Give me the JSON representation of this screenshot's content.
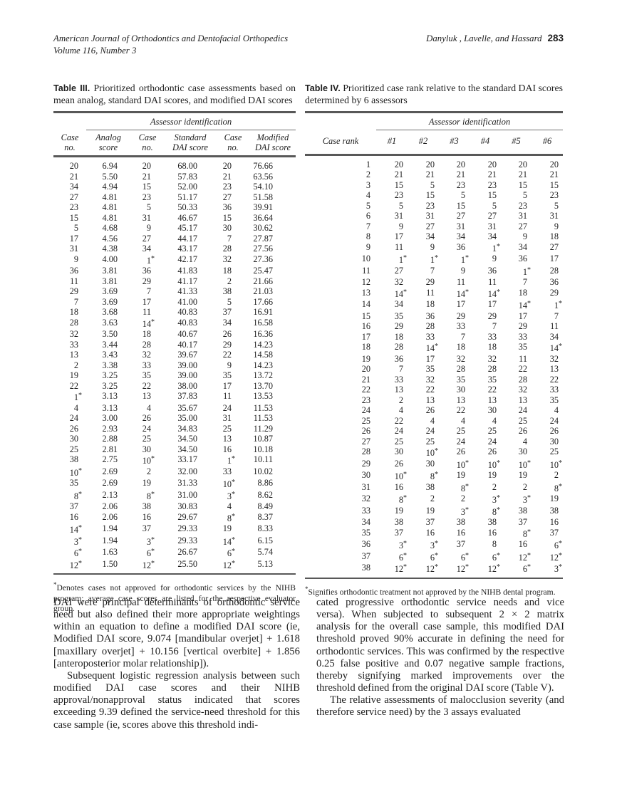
{
  "page_header": {
    "journal_line1": "American Journal of Orthodontics and Dentofacial Orthopedics",
    "journal_line2": "Volume 116, Number 3",
    "authors": "Danyluk , Lavelle, and Hassard",
    "page_number": "283"
  },
  "table3": {
    "caption_label": "Table III.",
    "caption_text": "Prioritized orthodontic case assessments based on mean analog, standard DAI scores, and modified DAI scores",
    "span_header": "Assessor identification",
    "columns": [
      "Case\nno.",
      "Analog\nscore",
      "Case\nno.",
      "Standard\nDAI score",
      "Case\nno.",
      "Modified\nDAI score"
    ],
    "rows": [
      [
        "20",
        "6.94",
        "20",
        "68.00",
        "20",
        "76.66"
      ],
      [
        "21",
        "5.50",
        "21",
        "57.83",
        "21",
        "63.56"
      ],
      [
        "34",
        "4.94",
        "15",
        "52.00",
        "23",
        "54.10"
      ],
      [
        "27",
        "4.81",
        "23",
        "51.17",
        "27",
        "51.58"
      ],
      [
        "23",
        "4.81",
        "5",
        "50.33",
        "36",
        "39.91"
      ],
      [
        "15",
        "4.81",
        "31",
        "46.67",
        "15",
        "36.64"
      ],
      [
        "5",
        "4.68",
        "9",
        "45.17",
        "30",
        "30.62"
      ],
      [
        "17",
        "4.56",
        "27",
        "44.17",
        "7",
        "27.87"
      ],
      [
        "31",
        "4.38",
        "34",
        "43.17",
        "28",
        "27.56"
      ],
      [
        "9",
        "4.00",
        "1*",
        "42.17",
        "32",
        "27.36"
      ],
      [
        "36",
        "3.81",
        "36",
        "41.83",
        "18",
        "25.47"
      ],
      [
        "11",
        "3.81",
        "29",
        "41.17",
        "2",
        "21.66"
      ],
      [
        "29",
        "3.69",
        "7",
        "41.33",
        "38",
        "21.03"
      ],
      [
        "7",
        "3.69",
        "17",
        "41.00",
        "5",
        "17.66"
      ],
      [
        "18",
        "3.68",
        "11",
        "40.83",
        "37",
        "16.91"
      ],
      [
        "28",
        "3.63",
        "14*",
        "40.83",
        "34",
        "16.58"
      ],
      [
        "32",
        "3.50",
        "18",
        "40.67",
        "26",
        "16.36"
      ],
      [
        "33",
        "3.44",
        "28",
        "40.17",
        "29",
        "14.23"
      ],
      [
        "13",
        "3.43",
        "32",
        "39.67",
        "22",
        "14.58"
      ],
      [
        "2",
        "3.38",
        "33",
        "39.00",
        "9",
        "14.23"
      ],
      [
        "19",
        "3.25",
        "35",
        "39.00",
        "35",
        "13.72"
      ],
      [
        "22",
        "3.25",
        "22",
        "38.00",
        "17",
        "13.70"
      ],
      [
        "1*",
        "3.13",
        "13",
        "37.83",
        "11",
        "13.53"
      ],
      [
        "4",
        "3.13",
        "4",
        "35.67",
        "24",
        "11.53"
      ],
      [
        "24",
        "3.00",
        "26",
        "35.00",
        "31",
        "11.53"
      ],
      [
        "26",
        "2.93",
        "24",
        "34.83",
        "25",
        "11.29"
      ],
      [
        "30",
        "2.88",
        "25",
        "34.50",
        "13",
        "10.87"
      ],
      [
        "25",
        "2.81",
        "30",
        "34.50",
        "16",
        "10.18"
      ],
      [
        "38",
        "2.75",
        "10*",
        "33.17",
        "1*",
        "10.11"
      ],
      [
        "10*",
        "2.69",
        "2",
        "32.00",
        "33",
        "10.02"
      ],
      [
        "35",
        "2.69",
        "19",
        "31.33",
        "10*",
        "8.86"
      ],
      [
        "8*",
        "2.13",
        "8*",
        "31.00",
        "3*",
        "8.62"
      ],
      [
        "37",
        "2.06",
        "38",
        "30.83",
        "4",
        "8.49"
      ],
      [
        "16",
        "2.06",
        "16",
        "29.67",
        "8*",
        "8.37"
      ],
      [
        "14*",
        "1.94",
        "37",
        "29.33",
        "19",
        "8.33"
      ],
      [
        "3*",
        "1.94",
        "3*",
        "29.33",
        "14*",
        "6.15"
      ],
      [
        "6*",
        "1.63",
        "6*",
        "26.67",
        "6*",
        "5.74"
      ],
      [
        "12*",
        "1.50",
        "12*",
        "25.50",
        "12*",
        "5.13"
      ]
    ],
    "footnote_marker": "*",
    "footnote": "Denotes cases not approved for orthodontic services by the NIHB program; average case scores are listed for the respective evaluator group."
  },
  "table4": {
    "caption_label": "Table IV.",
    "caption_text": "Prioritized case rank relative to the standard DAI scores determined by 6 assessors",
    "span_header": "Assessor identification",
    "columns": [
      "Case rank",
      "#1",
      "#2",
      "#3",
      "#4",
      "#5",
      "#6"
    ],
    "rows": [
      [
        "1",
        "20",
        "20",
        "20",
        "20",
        "20",
        "20"
      ],
      [
        "2",
        "21",
        "21",
        "21",
        "21",
        "21",
        "21"
      ],
      [
        "3",
        "15",
        "5",
        "23",
        "23",
        "15",
        "15"
      ],
      [
        "4",
        "23",
        "15",
        "5",
        "15",
        "5",
        "23"
      ],
      [
        "5",
        "5",
        "23",
        "15",
        "5",
        "23",
        "5"
      ],
      [
        "6",
        "31",
        "31",
        "27",
        "27",
        "31",
        "31"
      ],
      [
        "7",
        "9",
        "27",
        "31",
        "31",
        "27",
        "9"
      ],
      [
        "8",
        "17",
        "34",
        "34",
        "34",
        "9",
        "18"
      ],
      [
        "9",
        "11",
        "9",
        "36",
        "1*",
        "34",
        "27"
      ],
      [
        "10",
        "1*",
        "1*",
        "1*",
        "9",
        "36",
        "17"
      ],
      [
        "11",
        "27",
        "7",
        "9",
        "36",
        "1*",
        "28"
      ],
      [
        "12",
        "32",
        "29",
        "11",
        "11",
        "7",
        "36"
      ],
      [
        "13",
        "14*",
        "11",
        "14*",
        "14*",
        "18",
        "29"
      ],
      [
        "14",
        "34",
        "18",
        "17",
        "17",
        "14*",
        "1*"
      ],
      [
        "15",
        "35",
        "36",
        "29",
        "29",
        "17",
        "7"
      ],
      [
        "16",
        "29",
        "28",
        "33",
        "7",
        "29",
        "11"
      ],
      [
        "17",
        "18",
        "33",
        "7",
        "33",
        "33",
        "34"
      ],
      [
        "18",
        "28",
        "14*",
        "18",
        "18",
        "35",
        "14*"
      ],
      [
        "19",
        "36",
        "17",
        "32",
        "32",
        "11",
        "32"
      ],
      [
        "20",
        "7",
        "35",
        "28",
        "28",
        "22",
        "13"
      ],
      [
        "21",
        "33",
        "32",
        "35",
        "35",
        "28",
        "22"
      ],
      [
        "22",
        "13",
        "22",
        "30",
        "22",
        "32",
        "33"
      ],
      [
        "23",
        "2",
        "13",
        "13",
        "13",
        "13",
        "35"
      ],
      [
        "24",
        "4",
        "26",
        "22",
        "30",
        "24",
        "4"
      ],
      [
        "25",
        "22",
        "4",
        "4",
        "4",
        "25",
        "24"
      ],
      [
        "26",
        "24",
        "24",
        "25",
        "25",
        "26",
        "26"
      ],
      [
        "27",
        "25",
        "25",
        "24",
        "24",
        "4",
        "30"
      ],
      [
        "28",
        "30",
        "10*",
        "26",
        "26",
        "30",
        "25"
      ],
      [
        "29",
        "26",
        "30",
        "10*",
        "10*",
        "10*",
        "10*"
      ],
      [
        "30",
        "10*",
        "8*",
        "19",
        "19",
        "19",
        "2"
      ],
      [
        "31",
        "16",
        "38",
        "8*",
        "2",
        "2",
        "8*"
      ],
      [
        "32",
        "8*",
        "2",
        "2",
        "3*",
        "3*",
        "19"
      ],
      [
        "33",
        "19",
        "19",
        "3*",
        "8*",
        "38",
        "38"
      ],
      [
        "34",
        "38",
        "37",
        "38",
        "38",
        "37",
        "16"
      ],
      [
        "35",
        "37",
        "16",
        "16",
        "16",
        "8*",
        "37"
      ],
      [
        "36",
        "3*",
        "3*",
        "37",
        "8",
        "16",
        "6*"
      ],
      [
        "37",
        "6*",
        "6*",
        "6*",
        "6*",
        "12*",
        "12*"
      ],
      [
        "38",
        "12*",
        "12*",
        "12*",
        "12*",
        "6*",
        "3*"
      ]
    ],
    "footnote_marker": "*",
    "footnote": "Signifies orthodontic treatment not approved by the NIHB dental program."
  },
  "body": {
    "left_paragraphs": [
      "DAI were principal determinants of orthodontic service need but also defined their more appropriate weightings within an equation to define a modified DAI score (ie, Modified DAI score, 9.074 [mandibular overjet] + 1.618 [maxillary overjet] + 10.156 [vertical overbite] + 1.856 [anteroposterior molar relationship]).",
      "Subsequent logistic regression analysis between such modified DAI case scores and their NIHB approval/nonapproval status indicated that scores exceeding 9.39 defined the service-need threshold for this case sample (ie, scores above this threshold indi-"
    ],
    "right_paragraphs": [
      "cated progressive orthodontic service needs and vice versa). When subjected to subsequent 2 × 2 matrix analysis for the overall case sample, this modified DAI threshold proved 90% accurate in defining the need for orthodontic services. This was confirmed by the respective 0.25 false positive and 0.07 negative sample fractions, thereby signifying marked improvements over the threshold defined from the original DAI score (Table V).",
      "The relative assessments of malocclusion severity (and therefore service need) by the 3 assays evaluated"
    ]
  }
}
